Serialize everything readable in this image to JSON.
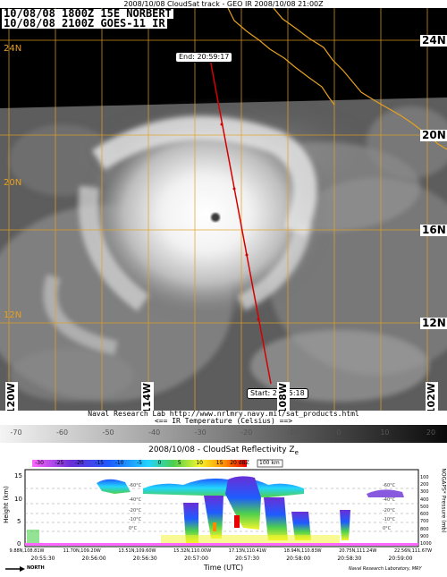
{
  "header": {
    "title": "2008/10/08 CloudSat track - GEO IR  2008/10/08 21:00Z"
  },
  "satellite": {
    "stamp_line1": "10/08/08 1800Z  15E NORBERT",
    "stamp_line2": "10/08/08 2100Z  GOES-11 IR",
    "end_label": "End: 20:59:17",
    "start_label": "Start: 20:55:18",
    "lat_right": [
      "24N",
      "20N",
      "16N",
      "12N"
    ],
    "lat_left": [
      "24N",
      "20N",
      "16N",
      "12N"
    ],
    "lon_bottom": [
      "120W",
      "114W",
      "108W",
      "102W"
    ],
    "colors": {
      "track": "#d40000",
      "grid": "#e6a020",
      "coast": "#e6a020"
    }
  },
  "info": {
    "line1": "Naval Research Lab http://www.nrlmry.navy.mil/sat_products.html",
    "line2": "<==  IR Temperature (Celsius)  ==>"
  },
  "colorbar": {
    "ticks": [
      "-70",
      "-60",
      "-50",
      "-40",
      "-30",
      "-20",
      "-10",
      "0",
      "10",
      "20"
    ]
  },
  "radar": {
    "title": "2008/10/08 - CloudSat Reflectivity Z",
    "title_sub": "e",
    "dbz_ticks": [
      "-30",
      "-25",
      "-20",
      "-15",
      "-10",
      "-5",
      "0",
      "5",
      "10",
      "15",
      "20 dBZ"
    ],
    "scale_label": "100 km",
    "y_label": "Height (km)",
    "y_ticks": [
      "15",
      "10",
      "5",
      "0"
    ],
    "right_label": "NOGAPS* Pressure (mb)",
    "right_ticks": [
      "100",
      "200",
      "300",
      "400",
      "500",
      "600",
      "700",
      "800",
      "900",
      "1000"
    ],
    "temp_labels": [
      "-60°C",
      "-40°C",
      "-20°C",
      "-10°C",
      "0°C",
      "-60°C",
      "-40°C",
      "-20°C",
      "-10°C",
      "0°C"
    ],
    "loc_labels": [
      "9.88N,108.81W",
      "11.70N,109.20W",
      "13.51N,109.60W",
      "15.32N,110.00W",
      "17.13N,110.41W",
      "18.94N,110.83W",
      "20.75N,111.24W",
      "22.56N,111.67W"
    ],
    "time_labels": [
      "20:55:30",
      "20:56:00",
      "20:56:30",
      "20:57:00",
      "20:57:30",
      "20:58:00",
      "20:58:30",
      "20:59:00"
    ],
    "x_label": "Time (UTC)",
    "north_label": "NORTH",
    "credit": "Naval Research Laboratory, MRY"
  }
}
